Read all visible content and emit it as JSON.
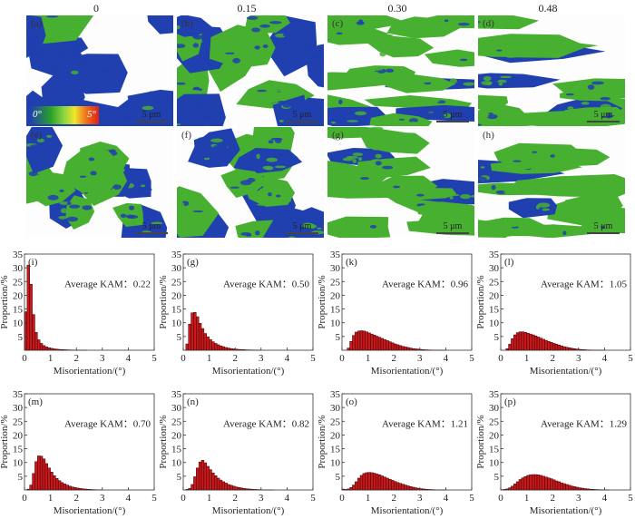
{
  "figure": {
    "column_labels": [
      "0",
      "0.15",
      "0.30",
      "0.48"
    ],
    "maps": [
      {
        "label": "(a)",
        "scale": "5 μm",
        "green_ratio": 0.08,
        "colorbar": {
          "min": "0°",
          "max": "5°"
        }
      },
      {
        "label": "(b)",
        "scale": "5 μm",
        "green_ratio": 0.35
      },
      {
        "label": "(c)",
        "scale": "5 μm",
        "green_ratio": 0.7
      },
      {
        "label": "(d)",
        "scale": "5 μm",
        "green_ratio": 0.72
      },
      {
        "label": "(e)",
        "scale": "5 μm",
        "green_ratio": 0.5
      },
      {
        "label": "(f)",
        "scale": "5 μm",
        "green_ratio": 0.55
      },
      {
        "label": "(g)",
        "scale": "5 μm",
        "green_ratio": 0.85
      },
      {
        "label": "(h)",
        "scale": "5 μm",
        "green_ratio": 0.85
      }
    ],
    "colors": {
      "low": "#2040b0",
      "mid": "#48b030",
      "bar_fill": "#c8181c",
      "bar_edge": "#3a0000"
    }
  },
  "chart_data": [
    {
      "type": "bar",
      "panel": "(i)",
      "annotation": "Average KAM：0.22",
      "xlabel": "Misorientation/(°)",
      "ylabel": "Proportion/%",
      "xlim": [
        0,
        5
      ],
      "ylim": [
        0,
        35
      ],
      "xticks": [
        "0",
        "1",
        "2",
        "3",
        "4",
        "5"
      ],
      "yticks": [
        "5",
        "10",
        "15",
        "20",
        "25",
        "30",
        "35"
      ],
      "bin_width": 0.1,
      "x": [
        0.1,
        0.2,
        0.3,
        0.4,
        0.5,
        0.6,
        0.7,
        0.8,
        0.9,
        1.0,
        1.1,
        1.2,
        1.3,
        1.4,
        1.5,
        1.6,
        1.7,
        1.8,
        1.9,
        2.0,
        2.1,
        2.2,
        2.3,
        2.4
      ],
      "values": [
        14,
        31,
        24,
        13,
        6.5,
        3.8,
        2.5,
        1.7,
        1.2,
        0.9,
        0.7,
        0.5,
        0.4,
        0.3,
        0.25,
        0.2,
        0.15,
        0.12,
        0.1,
        0.08,
        0.06,
        0.05,
        0.04,
        0.03
      ]
    },
    {
      "type": "bar",
      "panel": "(g)",
      "annotation": "Average KAM：0.50",
      "xlabel": "Misorientation/(°)",
      "ylabel": "Proportion/%",
      "xlim": [
        0,
        5
      ],
      "ylim": [
        0,
        35
      ],
      "xticks": [
        "0",
        "1",
        "2",
        "3",
        "4",
        "5"
      ],
      "yticks": [
        "5",
        "10",
        "15",
        "20",
        "25",
        "30",
        "35"
      ],
      "bin_width": 0.1,
      "x": [
        0.2,
        0.3,
        0.4,
        0.5,
        0.6,
        0.7,
        0.8,
        0.9,
        1.0,
        1.1,
        1.2,
        1.3,
        1.4,
        1.5,
        1.6,
        1.7,
        1.8,
        1.9,
        2.0,
        2.1,
        2.2,
        2.3,
        2.4,
        2.5,
        2.6,
        2.7,
        2.8,
        2.9,
        3.0
      ],
      "values": [
        2.3,
        9.5,
        13.6,
        13.8,
        12.2,
        9.8,
        7.9,
        6.1,
        4.9,
        3.9,
        3.1,
        2.5,
        2.0,
        1.6,
        1.3,
        1.0,
        0.8,
        0.6,
        0.5,
        0.4,
        0.3,
        0.25,
        0.2,
        0.15,
        0.12,
        0.1,
        0.08,
        0.06,
        0.05
      ]
    },
    {
      "type": "bar",
      "panel": "(k)",
      "annotation": "Average KAM：0.96",
      "xlabel": "Misorientation/(°)",
      "ylabel": "Proportion/%",
      "xlim": [
        0,
        5
      ],
      "ylim": [
        0,
        35
      ],
      "xticks": [
        "0",
        "1",
        "2",
        "3",
        "4",
        "5"
      ],
      "yticks": [
        "5",
        "10",
        "15",
        "20",
        "25",
        "30",
        "35"
      ],
      "bin_width": 0.1,
      "x": [
        0.3,
        0.4,
        0.5,
        0.6,
        0.7,
        0.8,
        0.9,
        1.0,
        1.1,
        1.2,
        1.3,
        1.4,
        1.5,
        1.6,
        1.7,
        1.8,
        1.9,
        2.0,
        2.1,
        2.2,
        2.3,
        2.4,
        2.5,
        2.6,
        2.7,
        2.8,
        2.9,
        3.0,
        3.1,
        3.2,
        3.3,
        3.4,
        3.5,
        3.6,
        3.7,
        3.8,
        3.9,
        4.0
      ],
      "values": [
        0.8,
        3.2,
        5.4,
        6.6,
        7.0,
        7.1,
        7.0,
        6.7,
        6.3,
        5.9,
        5.5,
        5.1,
        4.7,
        4.3,
        3.9,
        3.5,
        3.1,
        2.7,
        2.3,
        2.0,
        1.7,
        1.4,
        1.2,
        1.0,
        0.8,
        0.6,
        0.5,
        0.4,
        0.3,
        0.22,
        0.16,
        0.12,
        0.09,
        0.07,
        0.05,
        0.04,
        0.03,
        0.02
      ]
    },
    {
      "type": "bar",
      "panel": "(l)",
      "annotation": "Average KAM：1.05",
      "xlabel": "Misorientation/(°)",
      "ylabel": "Proportion/%",
      "xlim": [
        0,
        5
      ],
      "ylim": [
        0,
        35
      ],
      "xticks": [
        "0",
        "1",
        "2",
        "3",
        "4",
        "5"
      ],
      "yticks": [
        "5",
        "10",
        "15",
        "20",
        "25",
        "30",
        "35"
      ],
      "bin_width": 0.1,
      "x": [
        0.3,
        0.4,
        0.5,
        0.6,
        0.7,
        0.8,
        0.9,
        1.0,
        1.1,
        1.2,
        1.3,
        1.4,
        1.5,
        1.6,
        1.7,
        1.8,
        1.9,
        2.0,
        2.1,
        2.2,
        2.3,
        2.4,
        2.5,
        2.6,
        2.7,
        2.8,
        2.9,
        3.0,
        3.1,
        3.2,
        3.3,
        3.4,
        3.5,
        3.6,
        3.7,
        3.8,
        3.9,
        4.0
      ],
      "values": [
        0.6,
        2.2,
        4.2,
        5.6,
        6.4,
        6.7,
        6.7,
        6.5,
        6.2,
        5.9,
        5.6,
        5.2,
        4.8,
        4.4,
        4.0,
        3.6,
        3.2,
        2.9,
        2.5,
        2.2,
        1.9,
        1.6,
        1.3,
        1.1,
        0.9,
        0.7,
        0.55,
        0.42,
        0.32,
        0.24,
        0.18,
        0.13,
        0.1,
        0.07,
        0.05,
        0.04,
        0.03,
        0.02
      ]
    },
    {
      "type": "bar",
      "panel": "(m)",
      "annotation": "Average KAM：0.70",
      "xlabel": "Misorientation/(°)",
      "ylabel": "Proportion/%",
      "xlim": [
        0,
        5
      ],
      "ylim": [
        0,
        35
      ],
      "xticks": [
        "0",
        "1",
        "2",
        "3",
        "4",
        "5"
      ],
      "yticks": [
        "5",
        "10",
        "15",
        "20",
        "25",
        "30",
        "35"
      ],
      "bin_width": 0.1,
      "x": [
        0.2,
        0.3,
        0.4,
        0.5,
        0.6,
        0.7,
        0.8,
        0.9,
        1.0,
        1.1,
        1.2,
        1.3,
        1.4,
        1.5,
        1.6,
        1.7,
        1.8,
        1.9,
        2.0,
        2.1,
        2.2,
        2.3,
        2.4,
        2.5,
        2.6,
        2.7,
        2.8,
        2.9,
        3.0
      ],
      "values": [
        0.3,
        1.8,
        6.0,
        10.3,
        12.4,
        12.3,
        11.3,
        9.6,
        8.0,
        6.5,
        5.2,
        4.2,
        3.4,
        2.7,
        2.2,
        1.8,
        1.4,
        1.1,
        0.9,
        0.7,
        0.55,
        0.43,
        0.33,
        0.25,
        0.19,
        0.14,
        0.1,
        0.08,
        0.06
      ]
    },
    {
      "type": "bar",
      "panel": "(n)",
      "annotation": "Average KAM：0.82",
      "xlabel": "Misorientation/(°)",
      "ylabel": "Proportion/%",
      "xlim": [
        0,
        5
      ],
      "ylim": [
        0,
        35
      ],
      "xticks": [
        "0",
        "1",
        "2",
        "3",
        "4",
        "5"
      ],
      "yticks": [
        "5",
        "10",
        "15",
        "20",
        "25",
        "30",
        "35"
      ],
      "bin_width": 0.1,
      "x": [
        0.2,
        0.3,
        0.4,
        0.5,
        0.6,
        0.7,
        0.8,
        0.9,
        1.0,
        1.1,
        1.2,
        1.3,
        1.4,
        1.5,
        1.6,
        1.7,
        1.8,
        1.9,
        2.0,
        2.1,
        2.2,
        2.3,
        2.4,
        2.5,
        2.6,
        2.7,
        2.8,
        2.9,
        3.0,
        3.1,
        3.2,
        3.3,
        3.4,
        3.5
      ],
      "values": [
        0.2,
        0.6,
        2.0,
        4.8,
        8.0,
        10.2,
        10.8,
        9.9,
        8.6,
        7.4,
        6.2,
        5.2,
        4.3,
        3.6,
        3.0,
        2.5,
        2.0,
        1.7,
        1.4,
        1.1,
        0.9,
        0.72,
        0.57,
        0.45,
        0.35,
        0.27,
        0.21,
        0.16,
        0.12,
        0.09,
        0.07,
        0.05,
        0.04,
        0.03
      ]
    },
    {
      "type": "bar",
      "panel": "(o)",
      "annotation": "Average KAM：1.21",
      "xlabel": "Misorientation/(°)",
      "ylabel": "Proportion/%",
      "xlim": [
        0,
        5
      ],
      "ylim": [
        0,
        35
      ],
      "xticks": [
        "0",
        "1",
        "2",
        "3",
        "4",
        "5"
      ],
      "yticks": [
        "5",
        "10",
        "15",
        "20",
        "25",
        "30",
        "35"
      ],
      "bin_width": 0.1,
      "x": [
        0.1,
        0.2,
        0.3,
        0.4,
        0.5,
        0.6,
        0.7,
        0.8,
        0.9,
        1.0,
        1.1,
        1.2,
        1.3,
        1.4,
        1.5,
        1.6,
        1.7,
        1.8,
        1.9,
        2.0,
        2.1,
        2.2,
        2.3,
        2.4,
        2.5,
        2.6,
        2.7,
        2.8,
        2.9,
        3.0,
        3.1,
        3.2,
        3.3,
        3.4,
        3.5,
        3.6,
        3.7,
        3.8,
        3.9,
        4.0
      ],
      "values": [
        0.3,
        0.2,
        0.4,
        0.9,
        1.8,
        3.0,
        4.3,
        5.3,
        6.0,
        6.3,
        6.4,
        6.3,
        6.1,
        5.8,
        5.5,
        5.1,
        4.7,
        4.3,
        3.9,
        3.5,
        3.1,
        2.7,
        2.4,
        2.1,
        1.8,
        1.5,
        1.25,
        1.0,
        0.8,
        0.62,
        0.48,
        0.36,
        0.27,
        0.2,
        0.15,
        0.11,
        0.08,
        0.06,
        0.04,
        0.03
      ]
    },
    {
      "type": "bar",
      "panel": "(p)",
      "annotation": "Average KAM：1.29",
      "xlabel": "Misorientation/(°)",
      "ylabel": "Proportion/%",
      "xlim": [
        0,
        5
      ],
      "ylim": [
        0,
        35
      ],
      "xticks": [
        "0",
        "1",
        "2",
        "3",
        "4",
        "5"
      ],
      "yticks": [
        "5",
        "10",
        "15",
        "20",
        "25",
        "30",
        "35"
      ],
      "bin_width": 0.1,
      "x": [
        0.1,
        0.2,
        0.3,
        0.4,
        0.5,
        0.6,
        0.7,
        0.8,
        0.9,
        1.0,
        1.1,
        1.2,
        1.3,
        1.4,
        1.5,
        1.6,
        1.7,
        1.8,
        1.9,
        2.0,
        2.1,
        2.2,
        2.3,
        2.4,
        2.5,
        2.6,
        2.7,
        2.8,
        2.9,
        3.0,
        3.1,
        3.2,
        3.3,
        3.4,
        3.5,
        3.6,
        3.7,
        3.8,
        3.9,
        4.0,
        4.1,
        4.2
      ],
      "values": [
        0.1,
        0.2,
        0.4,
        0.8,
        1.4,
        2.2,
        3.0,
        3.8,
        4.4,
        4.9,
        5.3,
        5.5,
        5.6,
        5.6,
        5.5,
        5.3,
        5.0,
        4.7,
        4.4,
        4.1,
        3.7,
        3.3,
        3.0,
        2.6,
        2.3,
        2.0,
        1.7,
        1.4,
        1.2,
        1.0,
        0.8,
        0.65,
        0.5,
        0.4,
        0.3,
        0.23,
        0.17,
        0.13,
        0.1,
        0.07,
        0.05,
        0.03
      ]
    }
  ]
}
